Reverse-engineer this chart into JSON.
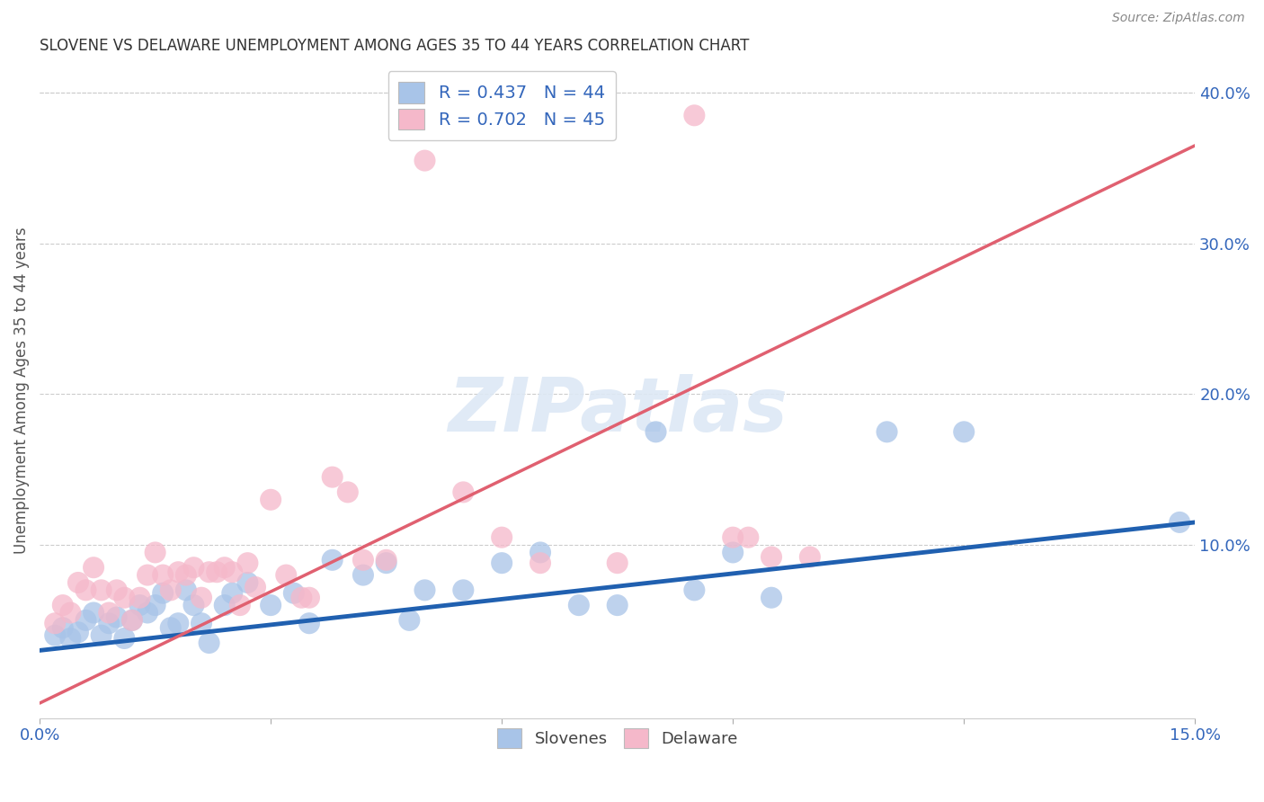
{
  "title": "SLOVENE VS DELAWARE UNEMPLOYMENT AMONG AGES 35 TO 44 YEARS CORRELATION CHART",
  "source": "Source: ZipAtlas.com",
  "ylabel": "Unemployment Among Ages 35 to 44 years",
  "xlim": [
    0.0,
    0.15
  ],
  "ylim": [
    -0.015,
    0.42
  ],
  "blue_R": 0.437,
  "blue_N": 44,
  "pink_R": 0.702,
  "pink_N": 45,
  "blue_color": "#a8c4e8",
  "pink_color": "#f5b8ca",
  "blue_line_color": "#2060b0",
  "pink_line_color": "#e06070",
  "legend_label_blue": "Slovenes",
  "legend_label_pink": "Delaware",
  "watermark": "ZIPatlas",
  "blue_line_x0": 0.0,
  "blue_line_y0": 0.03,
  "blue_line_x1": 0.15,
  "blue_line_y1": 0.115,
  "pink_line_x0": 0.0,
  "pink_line_y0": -0.005,
  "pink_line_x1": 0.15,
  "pink_line_y1": 0.365,
  "blue_scatter_x": [
    0.002,
    0.003,
    0.004,
    0.005,
    0.006,
    0.007,
    0.008,
    0.009,
    0.01,
    0.011,
    0.012,
    0.013,
    0.014,
    0.015,
    0.016,
    0.017,
    0.018,
    0.019,
    0.02,
    0.021,
    0.022,
    0.024,
    0.025,
    0.027,
    0.03,
    0.033,
    0.035,
    0.038,
    0.042,
    0.045,
    0.048,
    0.05,
    0.055,
    0.06,
    0.065,
    0.07,
    0.075,
    0.08,
    0.085,
    0.09,
    0.095,
    0.11,
    0.12,
    0.148
  ],
  "blue_scatter_y": [
    0.04,
    0.045,
    0.038,
    0.042,
    0.05,
    0.055,
    0.04,
    0.048,
    0.052,
    0.038,
    0.05,
    0.06,
    0.055,
    0.06,
    0.068,
    0.045,
    0.048,
    0.07,
    0.06,
    0.048,
    0.035,
    0.06,
    0.068,
    0.075,
    0.06,
    0.068,
    0.048,
    0.09,
    0.08,
    0.088,
    0.05,
    0.07,
    0.07,
    0.088,
    0.095,
    0.06,
    0.06,
    0.175,
    0.07,
    0.095,
    0.065,
    0.175,
    0.175,
    0.115
  ],
  "pink_scatter_x": [
    0.002,
    0.003,
    0.004,
    0.005,
    0.006,
    0.007,
    0.008,
    0.009,
    0.01,
    0.011,
    0.012,
    0.013,
    0.014,
    0.015,
    0.016,
    0.017,
    0.018,
    0.019,
    0.02,
    0.021,
    0.022,
    0.023,
    0.024,
    0.025,
    0.026,
    0.027,
    0.028,
    0.03,
    0.032,
    0.034,
    0.035,
    0.038,
    0.04,
    0.042,
    0.045,
    0.05,
    0.055,
    0.06,
    0.065,
    0.075,
    0.085,
    0.09,
    0.092,
    0.095,
    0.1
  ],
  "pink_scatter_y": [
    0.048,
    0.06,
    0.055,
    0.075,
    0.07,
    0.085,
    0.07,
    0.055,
    0.07,
    0.065,
    0.05,
    0.065,
    0.08,
    0.095,
    0.08,
    0.07,
    0.082,
    0.08,
    0.085,
    0.065,
    0.082,
    0.082,
    0.085,
    0.082,
    0.06,
    0.088,
    0.072,
    0.13,
    0.08,
    0.065,
    0.065,
    0.145,
    0.135,
    0.09,
    0.09,
    0.355,
    0.135,
    0.105,
    0.088,
    0.088,
    0.385,
    0.105,
    0.105,
    0.092,
    0.092
  ],
  "background_color": "#ffffff",
  "grid_color": "#cccccc"
}
